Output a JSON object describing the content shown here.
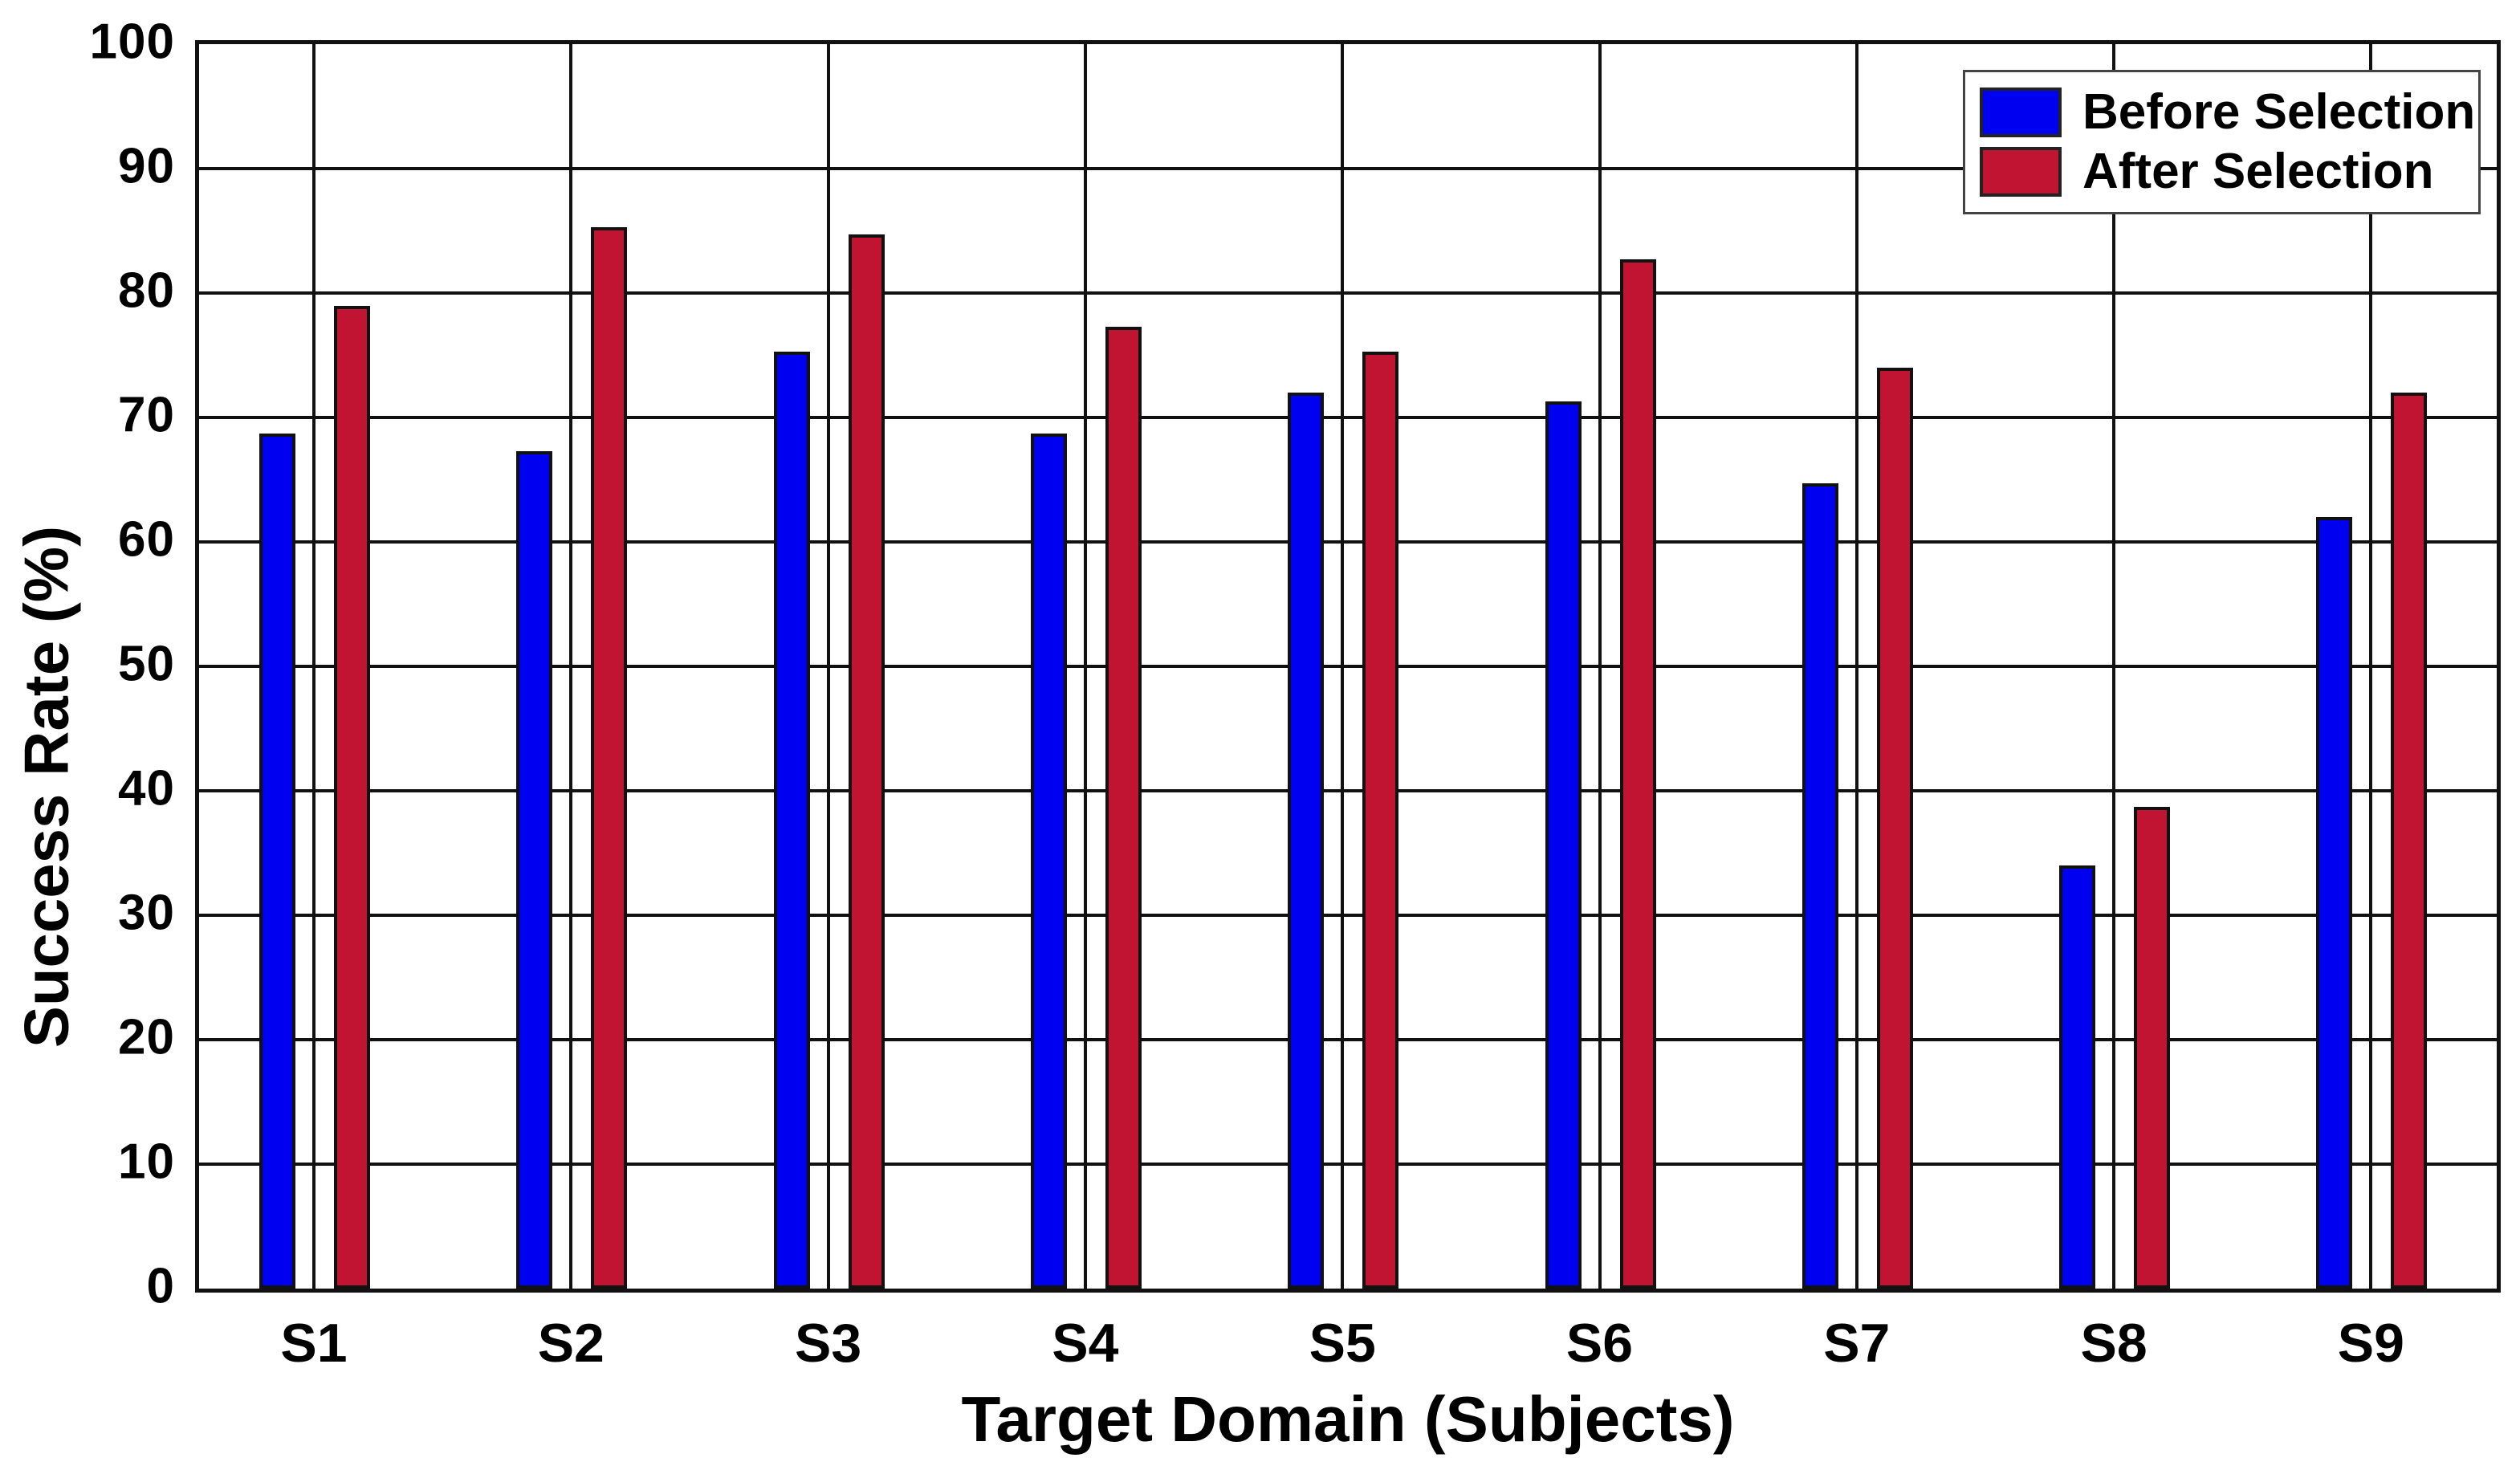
{
  "figure": {
    "background_color": "#ffffff",
    "axis_color": "#111111",
    "grid_color": "#111111"
  },
  "chart_data": {
    "type": "bar",
    "title": "",
    "xlabel": "Target Domain (Subjects)",
    "ylabel": "Success Rate (%)",
    "categories": [
      "S1",
      "S2",
      "S3",
      "S4",
      "S5",
      "S6",
      "S7",
      "S8",
      "S9"
    ],
    "series": [
      {
        "name": "Before Selection",
        "color": "#0000F0",
        "values": [
          68.7,
          67.3,
          75.3,
          68.7,
          72.0,
          71.3,
          64.7,
          34.0,
          62.0
        ]
      },
      {
        "name": "After Selection",
        "color": "#C11332",
        "values": [
          79.0,
          85.3,
          84.7,
          77.3,
          75.3,
          82.7,
          74.0,
          38.7,
          72.0
        ]
      }
    ],
    "ylim": [
      0,
      100
    ],
    "yticks": [
      0,
      10,
      20,
      30,
      40,
      50,
      60,
      70,
      80,
      90,
      100
    ],
    "grid": true,
    "legend_position": "top-right",
    "legend_entries": [
      "Before Selection",
      "After Selection"
    ]
  }
}
